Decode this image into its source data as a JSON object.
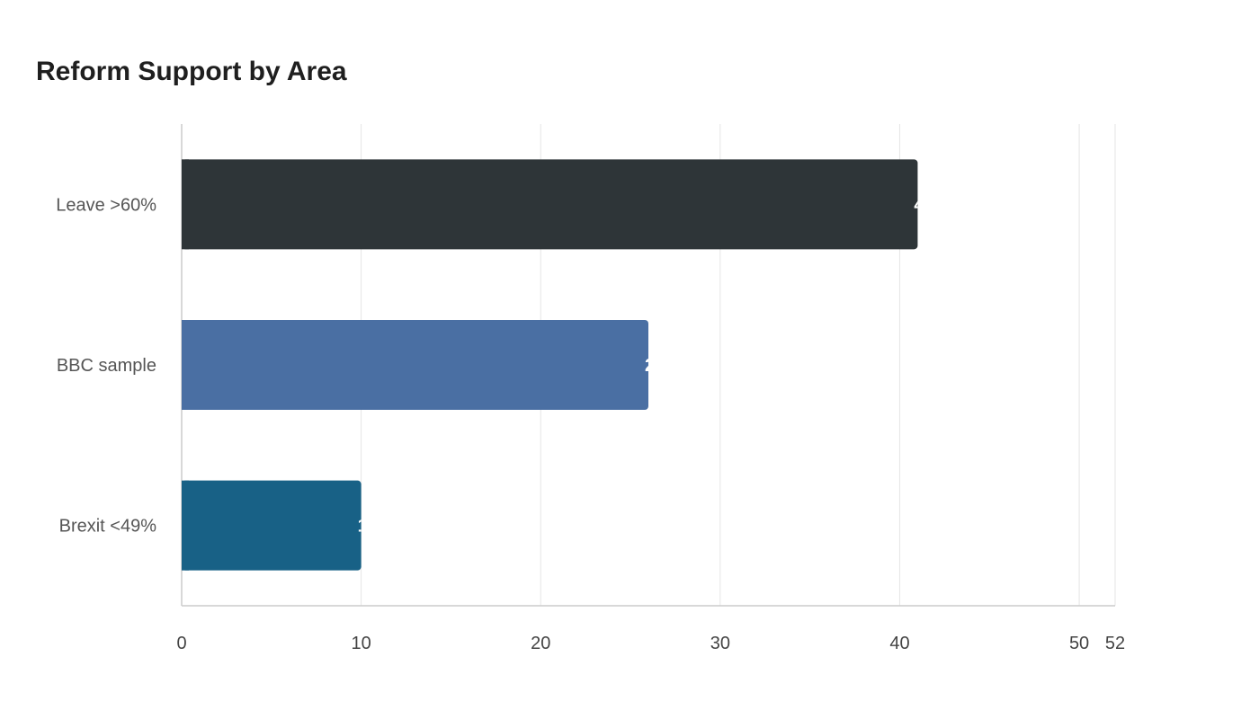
{
  "chart_data": {
    "type": "bar",
    "orientation": "horizontal",
    "title": "Reform Support by Area",
    "categories": [
      "Leave >60%",
      "BBC sample",
      "Brexit <49%"
    ],
    "values": [
      41,
      26,
      10
    ],
    "bar_colors": [
      "#2e3538",
      "#4a6fa3",
      "#186186"
    ],
    "xlabel": "",
    "ylabel": "",
    "xlim": [
      0,
      52
    ],
    "x_ticks": [
      0,
      10,
      20,
      30,
      40,
      50,
      52
    ],
    "grid": "vertical",
    "legend": "none"
  }
}
